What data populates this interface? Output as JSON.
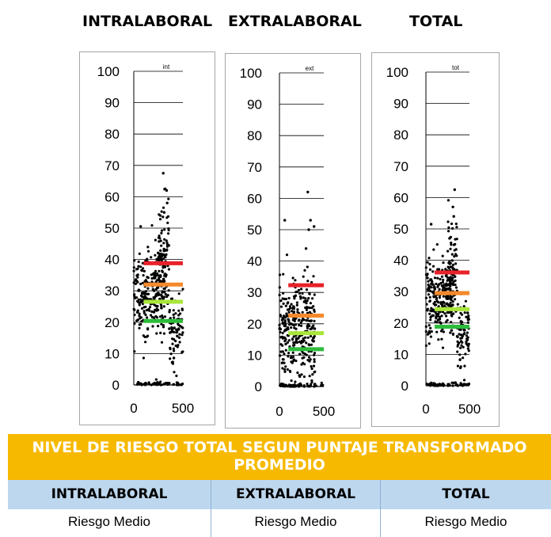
{
  "headings": {
    "intralaboral": "INTRALABORAL",
    "extralaboral": "EXTRALABORAL",
    "total": "TOTAL"
  },
  "chart_data": [
    {
      "type": "scatter",
      "title": "int",
      "xlim": [
        0,
        500
      ],
      "ylim": [
        0,
        100
      ],
      "xticks": [
        "0",
        "500"
      ],
      "yticks": [
        "0",
        "10",
        "20",
        "30",
        "40",
        "50",
        "60",
        "70",
        "80",
        "90",
        "100"
      ],
      "thresholds": [
        {
          "level": "red",
          "value": 38.8,
          "color": "#e8222a"
        },
        {
          "level": "orange",
          "value": 32.0,
          "color": "#f5892b"
        },
        {
          "level": "yellow",
          "value": 26.5,
          "color": "#a8e63a"
        },
        {
          "level": "green",
          "value": 20.4,
          "color": "#2dbb3c"
        }
      ],
      "clusters": [
        {
          "x": [
            0,
            320
          ],
          "y_center": 30,
          "y_spread": 7,
          "n": 260
        },
        {
          "x": [
            250,
            360
          ],
          "y_center": 40,
          "y_spread": 8,
          "n": 90
        },
        {
          "x": [
            360,
            500
          ],
          "y_center": 18,
          "y_spread": 6,
          "n": 80
        },
        {
          "x": [
            0,
            500
          ],
          "y_center": 0.3,
          "y_spread": 0.3,
          "n": 60
        }
      ],
      "outliers": [
        [
          300,
          67.5
        ],
        [
          320,
          62.5
        ],
        [
          335,
          62
        ],
        [
          70,
          50.5
        ],
        [
          310,
          55
        ],
        [
          340,
          58
        ]
      ]
    },
    {
      "type": "scatter",
      "title": "ext",
      "xlim": [
        0,
        500
      ],
      "ylim": [
        0,
        100
      ],
      "xticks": [
        "0",
        "500"
      ],
      "yticks": [
        "0",
        "10",
        "20",
        "30",
        "40",
        "50",
        "60",
        "70",
        "80",
        "90",
        "100"
      ],
      "thresholds": [
        {
          "level": "red",
          "value": 32.3,
          "color": "#e8222a"
        },
        {
          "level": "orange",
          "value": 22.6,
          "color": "#f5892b"
        },
        {
          "level": "yellow",
          "value": 17.0,
          "color": "#a8e63a"
        },
        {
          "level": "green",
          "value": 11.9,
          "color": "#2dbb3c"
        }
      ],
      "clusters": [
        {
          "x": [
            0,
            400
          ],
          "y_center": 18,
          "y_spread": 8,
          "n": 320
        },
        {
          "x": [
            0,
            500
          ],
          "y_center": 0.3,
          "y_spread": 0.3,
          "n": 50
        }
      ],
      "outliers": [
        [
          320,
          62
        ],
        [
          60,
          53
        ],
        [
          350,
          53
        ],
        [
          390,
          51
        ],
        [
          300,
          44
        ],
        [
          330,
          50
        ]
      ]
    },
    {
      "type": "scatter",
      "title": "tot",
      "xlim": [
        0,
        500
      ],
      "ylim": [
        0,
        100
      ],
      "xticks": [
        "0",
        "500"
      ],
      "yticks": [
        "0",
        "10",
        "20",
        "30",
        "40",
        "50",
        "60",
        "70",
        "80",
        "90",
        "100"
      ],
      "thresholds": [
        {
          "level": "red",
          "value": 36.1,
          "color": "#e8222a"
        },
        {
          "level": "orange",
          "value": 29.5,
          "color": "#f5892b"
        },
        {
          "level": "yellow",
          "value": 24.4,
          "color": "#a8e63a"
        },
        {
          "level": "green",
          "value": 18.8,
          "color": "#2dbb3c"
        }
      ],
      "clusters": [
        {
          "x": [
            0,
            320
          ],
          "y_center": 28,
          "y_spread": 6,
          "n": 260
        },
        {
          "x": [
            250,
            360
          ],
          "y_center": 38,
          "y_spread": 8,
          "n": 80
        },
        {
          "x": [
            360,
            500
          ],
          "y_center": 17,
          "y_spread": 5,
          "n": 80
        },
        {
          "x": [
            0,
            500
          ],
          "y_center": 0.3,
          "y_spread": 0.3,
          "n": 60
        }
      ],
      "outliers": [
        [
          330,
          62.5
        ],
        [
          310,
          57
        ],
        [
          60,
          51.5
        ],
        [
          320,
          54
        ]
      ]
    }
  ],
  "table": {
    "title_line1": "NIVEL DE RIESGO TOTAL SEGUN PUNTAJE TRANSFORMADO",
    "title_line2": "PROMEDIO",
    "columns": [
      {
        "header": "INTRALABORAL",
        "value": "Riesgo Medio"
      },
      {
        "header": "EXTRALABORAL",
        "value": "Riesgo Medio"
      },
      {
        "header": "TOTAL",
        "value": "Riesgo Medio"
      }
    ]
  },
  "colors": {
    "header_bg": "#f7b900",
    "subheader_bg": "#bdd7ee",
    "panel_border": "#a6a6a6"
  }
}
